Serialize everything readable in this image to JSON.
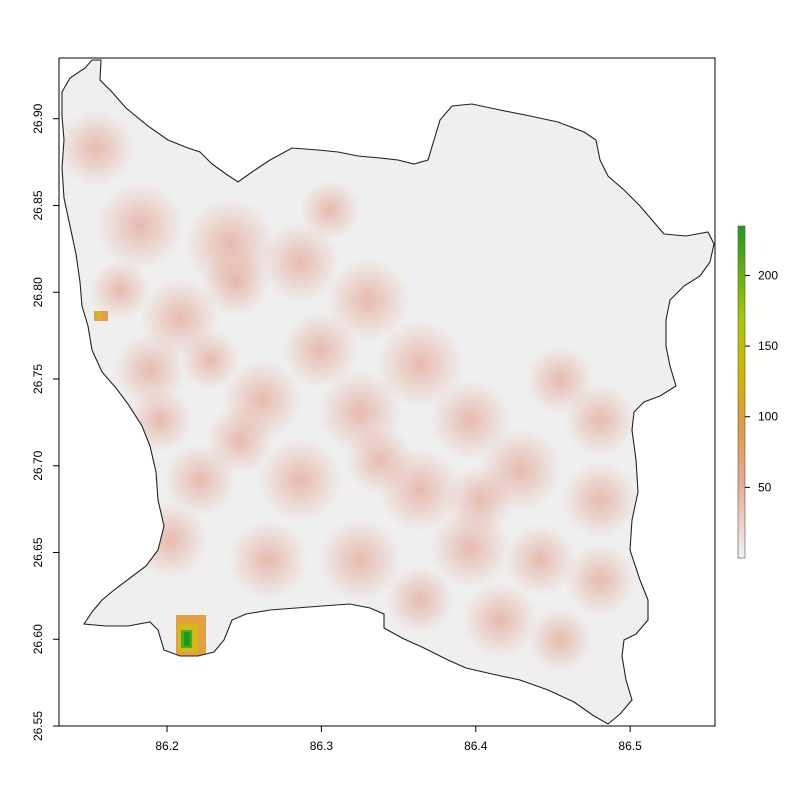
{
  "map": {
    "x_axis": {
      "ticks": [
        86.2,
        86.3,
        86.4,
        86.5
      ],
      "tick_labels": [
        "86.2",
        "86.3",
        "86.4",
        "86.5"
      ],
      "range": [
        86.13,
        86.555
      ]
    },
    "y_axis": {
      "ticks": [
        26.55,
        26.6,
        26.65,
        26.7,
        26.75,
        26.8,
        26.85,
        26.9
      ],
      "tick_labels": [
        "26.55",
        "26.60",
        "26.65",
        "26.70",
        "26.75",
        "26.80",
        "26.85",
        "26.90"
      ],
      "range": [
        26.55,
        26.935
      ]
    },
    "legend": {
      "ticks": [
        50,
        100,
        150,
        200
      ],
      "tick_labels": [
        "50",
        "100",
        "150",
        "200"
      ],
      "range": [
        0,
        235
      ],
      "placement": "right",
      "colors": [
        "#f2f2f2",
        "#e8a58f",
        "#e0a020",
        "#c8c800",
        "#1f9a1f"
      ]
    },
    "boundary_color": "#222222",
    "background_fill": "#efefef"
  }
}
